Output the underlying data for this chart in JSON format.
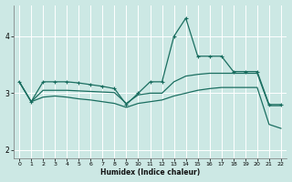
{
  "xlabel": "Humidex (Indice chaleur)",
  "xlim": [
    -0.5,
    22.5
  ],
  "ylim": [
    1.85,
    4.55
  ],
  "xticks": [
    0,
    1,
    2,
    3,
    4,
    5,
    6,
    7,
    8,
    9,
    10,
    11,
    12,
    13,
    14,
    15,
    16,
    17,
    18,
    19,
    20,
    21,
    22
  ],
  "yticks": [
    2,
    3,
    4
  ],
  "bg_color": "#cce8e4",
  "line_color": "#1a6e60",
  "grid_color": "#ffffff",
  "series": [
    {
      "x": [
        0,
        1,
        2,
        3,
        4,
        5,
        6,
        7,
        8,
        9,
        10,
        11,
        12,
        13,
        14,
        15,
        16,
        17,
        18,
        19,
        20,
        21,
        22
      ],
      "y": [
        3.2,
        2.85,
        3.2,
        3.2,
        3.2,
        3.18,
        3.15,
        3.12,
        3.08,
        2.8,
        3.0,
        3.2,
        3.2,
        4.0,
        4.32,
        3.65,
        3.65,
        3.65,
        3.38,
        3.38,
        3.38,
        2.8,
        2.8
      ],
      "markers": true
    },
    {
      "x": [
        0,
        1,
        2,
        3,
        4,
        5,
        6,
        7,
        8,
        9,
        10,
        11,
        12,
        13,
        14,
        15,
        16,
        17,
        18,
        19,
        20,
        21,
        22
      ],
      "y": [
        3.2,
        2.85,
        3.05,
        3.05,
        3.05,
        3.04,
        3.03,
        3.02,
        3.01,
        2.82,
        2.97,
        3.0,
        3.0,
        3.2,
        3.3,
        3.33,
        3.35,
        3.35,
        3.35,
        3.35,
        3.35,
        2.78,
        2.78
      ],
      "markers": false
    },
    {
      "x": [
        0,
        1,
        2,
        3,
        4,
        5,
        6,
        7,
        8,
        9,
        10,
        11,
        12,
        13,
        14,
        15,
        16,
        17,
        18,
        19,
        20,
        21,
        22
      ],
      "y": [
        3.2,
        2.85,
        2.93,
        2.95,
        2.93,
        2.9,
        2.88,
        2.85,
        2.82,
        2.75,
        2.82,
        2.85,
        2.88,
        2.95,
        3.0,
        3.05,
        3.08,
        3.1,
        3.1,
        3.1,
        3.1,
        2.45,
        2.38
      ],
      "markers": false
    }
  ]
}
